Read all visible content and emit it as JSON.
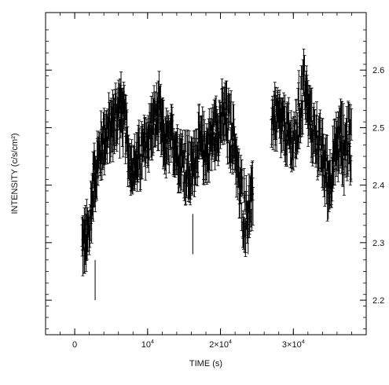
{
  "chart_data": {
    "type": "scatter",
    "title": "",
    "xlabel": "TIME (s)",
    "ylabel": "INTENSITY (c/s/cm²)",
    "xlim": [
      -4000,
      40000
    ],
    "ylim": [
      2.14,
      2.7
    ],
    "x_ticks": [
      {
        "value": 0,
        "label": "0"
      },
      {
        "value": 10000,
        "label": "10",
        "exp": "4",
        "prefix": ""
      },
      {
        "value": 20000,
        "label": "2×10",
        "exp": "4",
        "prefix": ""
      },
      {
        "value": 30000,
        "label": "3×10",
        "exp": "4",
        "prefix": ""
      }
    ],
    "y_ticks": [
      {
        "value": 2.2,
        "label": "2.2"
      },
      {
        "value": 2.3,
        "label": "2.3"
      },
      {
        "value": 2.4,
        "label": "2.4"
      },
      {
        "value": 2.5,
        "label": "2.5"
      },
      {
        "value": 2.6,
        "label": "2.6"
      }
    ],
    "grid": false,
    "error_bars": true,
    "gap_range": [
      24800,
      26800
    ],
    "series": [
      {
        "points_x": [
          1000,
          1500,
          2000,
          2500,
          3000,
          3500,
          4000,
          4500,
          5000,
          5500,
          6000,
          6500,
          7000,
          7500,
          8000,
          8500,
          9000,
          9500,
          10000,
          10500,
          11000,
          11500,
          12000,
          12500,
          13000,
          13500,
          14000,
          14500,
          15000,
          15500,
          16000,
          16500,
          17000,
          17500,
          18000,
          18500,
          19000,
          19500,
          20000,
          20500,
          21000,
          21500,
          22000,
          22500,
          23000,
          23500,
          24000,
          24500,
          27000,
          27500,
          28000,
          28500,
          29000,
          29500,
          30000,
          30500,
          31000,
          31500,
          32000,
          32500,
          33000,
          33500,
          34000,
          34500,
          35000,
          35500,
          36000,
          36500,
          37000,
          37500,
          38000
        ],
        "points_y": [
          2.3,
          2.3,
          2.32,
          2.4,
          2.43,
          2.46,
          2.48,
          2.49,
          2.5,
          2.51,
          2.53,
          2.52,
          2.5,
          2.44,
          2.43,
          2.44,
          2.45,
          2.46,
          2.48,
          2.5,
          2.51,
          2.52,
          2.49,
          2.47,
          2.47,
          2.48,
          2.46,
          2.45,
          2.44,
          2.43,
          2.42,
          2.45,
          2.47,
          2.47,
          2.46,
          2.47,
          2.49,
          2.5,
          2.51,
          2.52,
          2.5,
          2.49,
          2.47,
          2.4,
          2.37,
          2.35,
          2.36,
          2.38,
          2.52,
          2.52,
          2.51,
          2.5,
          2.49,
          2.48,
          2.47,
          2.5,
          2.54,
          2.58,
          2.53,
          2.5,
          2.49,
          2.47,
          2.45,
          2.42,
          2.41,
          2.44,
          2.47,
          2.48,
          2.46,
          2.48,
          2.47
        ],
        "spread": [
          0.04,
          0.05,
          0.05,
          0.04,
          0.04,
          0.04,
          0.04,
          0.04,
          0.04,
          0.05,
          0.05,
          0.04,
          0.04,
          0.03,
          0.03,
          0.04,
          0.04,
          0.04,
          0.04,
          0.04,
          0.04,
          0.05,
          0.04,
          0.04,
          0.04,
          0.04,
          0.04,
          0.04,
          0.05,
          0.05,
          0.04,
          0.04,
          0.04,
          0.04,
          0.04,
          0.04,
          0.04,
          0.04,
          0.04,
          0.05,
          0.05,
          0.04,
          0.04,
          0.05,
          0.05,
          0.04,
          0.04,
          0.04,
          0.04,
          0.04,
          0.04,
          0.04,
          0.04,
          0.04,
          0.04,
          0.05,
          0.05,
          0.04,
          0.04,
          0.04,
          0.04,
          0.04,
          0.05,
          0.05,
          0.04,
          0.04,
          0.05,
          0.05,
          0.05,
          0.05,
          0.05
        ]
      }
    ]
  }
}
